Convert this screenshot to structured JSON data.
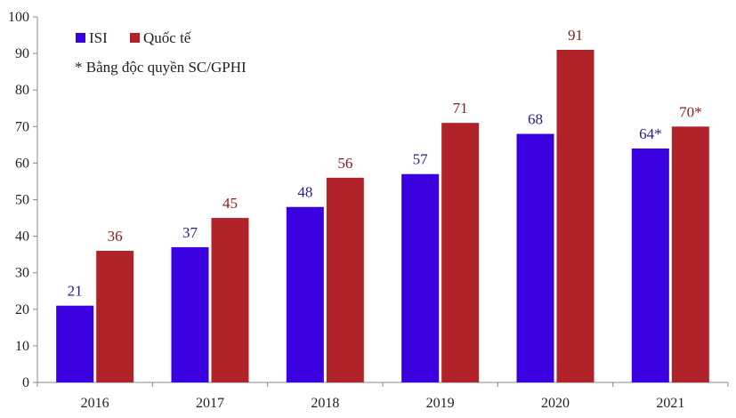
{
  "chart_data": {
    "type": "bar",
    "categories": [
      "2016",
      "2017",
      "2018",
      "2019",
      "2020",
      "2021"
    ],
    "series": [
      {
        "name": "ISI",
        "values": [
          21,
          37,
          48,
          57,
          68,
          64
        ],
        "labels": [
          "21",
          "37",
          "48",
          "57",
          "68",
          "64*"
        ],
        "color": "#3a00e0",
        "label_color": "#2b1a8c"
      },
      {
        "name": "Quốc tế",
        "values": [
          36,
          45,
          56,
          71,
          91,
          70
        ],
        "labels": [
          "36",
          "45",
          "56",
          "71",
          "91",
          "70*"
        ],
        "color": "#b02328",
        "label_color": "#8b1a1a"
      }
    ],
    "ylim": [
      0,
      100
    ],
    "yticks": [
      "0",
      "10",
      "20",
      "30",
      "40",
      "50",
      "60",
      "70",
      "80",
      "90",
      "100"
    ],
    "note": "* Bằng độc quyền SC/GPHI",
    "legend_position": "top-left",
    "grid": false
  }
}
